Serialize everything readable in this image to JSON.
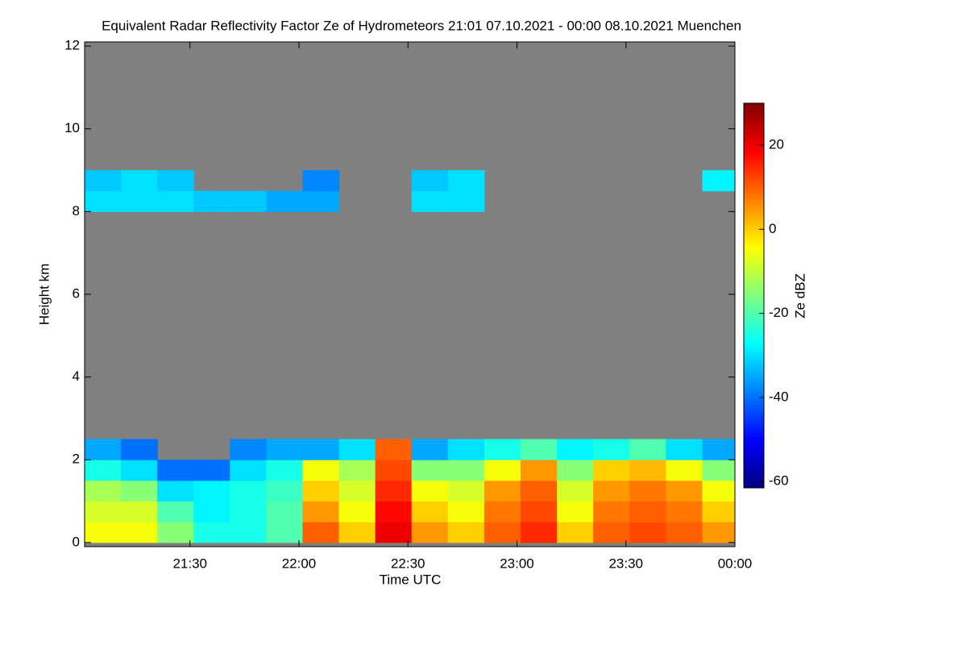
{
  "chart_data": {
    "type": "heatmap",
    "title": "Equivalent Radar Reflectivity Factor Ze of Hydrometeors   21:01 07.10.2021 - 00:00 08.10.2021 Muenchen",
    "x_label": "Time UTC",
    "y_label": "Height km",
    "colorbar_label": "Ze dBZ",
    "x": [
      6,
      16,
      26,
      36,
      46,
      56,
      66,
      76,
      86,
      96,
      106,
      116,
      126,
      136,
      146,
      156,
      166,
      176
    ],
    "y": [
      0.25,
      0.75,
      1.25,
      1.75,
      2.25,
      8.25,
      8.75
    ],
    "z": [
      [
        -5,
        -5,
        -15,
        -25,
        -25,
        -20,
        10,
        0,
        20,
        5,
        0,
        10,
        15,
        0,
        10,
        12,
        10,
        5
      ],
      [
        -8,
        -8,
        -20,
        -28,
        -25,
        -20,
        5,
        -5,
        18,
        0,
        -5,
        8,
        12,
        -5,
        8,
        10,
        8,
        0
      ],
      [
        -12,
        -15,
        -30,
        -28,
        -25,
        -22,
        0,
        -8,
        15,
        -5,
        -8,
        5,
        10,
        -8,
        5,
        8,
        5,
        -5
      ],
      [
        -25,
        -30,
        -40,
        -40,
        -30,
        -25,
        -5,
        -12,
        12,
        -15,
        -15,
        -5,
        5,
        -15,
        0,
        2,
        -5,
        -15
      ],
      [
        -35,
        -40,
        null,
        null,
        -38,
        -35,
        -35,
        -30,
        10,
        -35,
        -30,
        -25,
        -20,
        -28,
        -25,
        -20,
        -30,
        -35
      ],
      [
        -30,
        -30,
        -30,
        -32,
        -32,
        -35,
        -35,
        null,
        null,
        -30,
        -30,
        null,
        null,
        null,
        null,
        null,
        null,
        null
      ],
      [
        -32,
        -30,
        -32,
        null,
        null,
        null,
        -38,
        null,
        null,
        -32,
        -30,
        null,
        null,
        null,
        null,
        null,
        null,
        -28
      ]
    ],
    "xlim": [
      1,
      180
    ],
    "xticks": [
      {
        "value": 30,
        "label": "21:30"
      },
      {
        "value": 60,
        "label": "22:00"
      },
      {
        "value": 90,
        "label": "22:30"
      },
      {
        "value": 120,
        "label": "23:00"
      },
      {
        "value": 150,
        "label": "23:30"
      },
      {
        "value": 180,
        "label": "00:00"
      }
    ],
    "ylim": [
      -0.1,
      12.1
    ],
    "yticks": [
      0,
      2,
      4,
      6,
      8,
      10,
      12
    ],
    "zlim": [
      -61.5,
      30
    ],
    "zticks": [
      -60,
      -40,
      -20,
      0,
      20
    ],
    "colormap": "jet",
    "missing_color": "#808080"
  }
}
